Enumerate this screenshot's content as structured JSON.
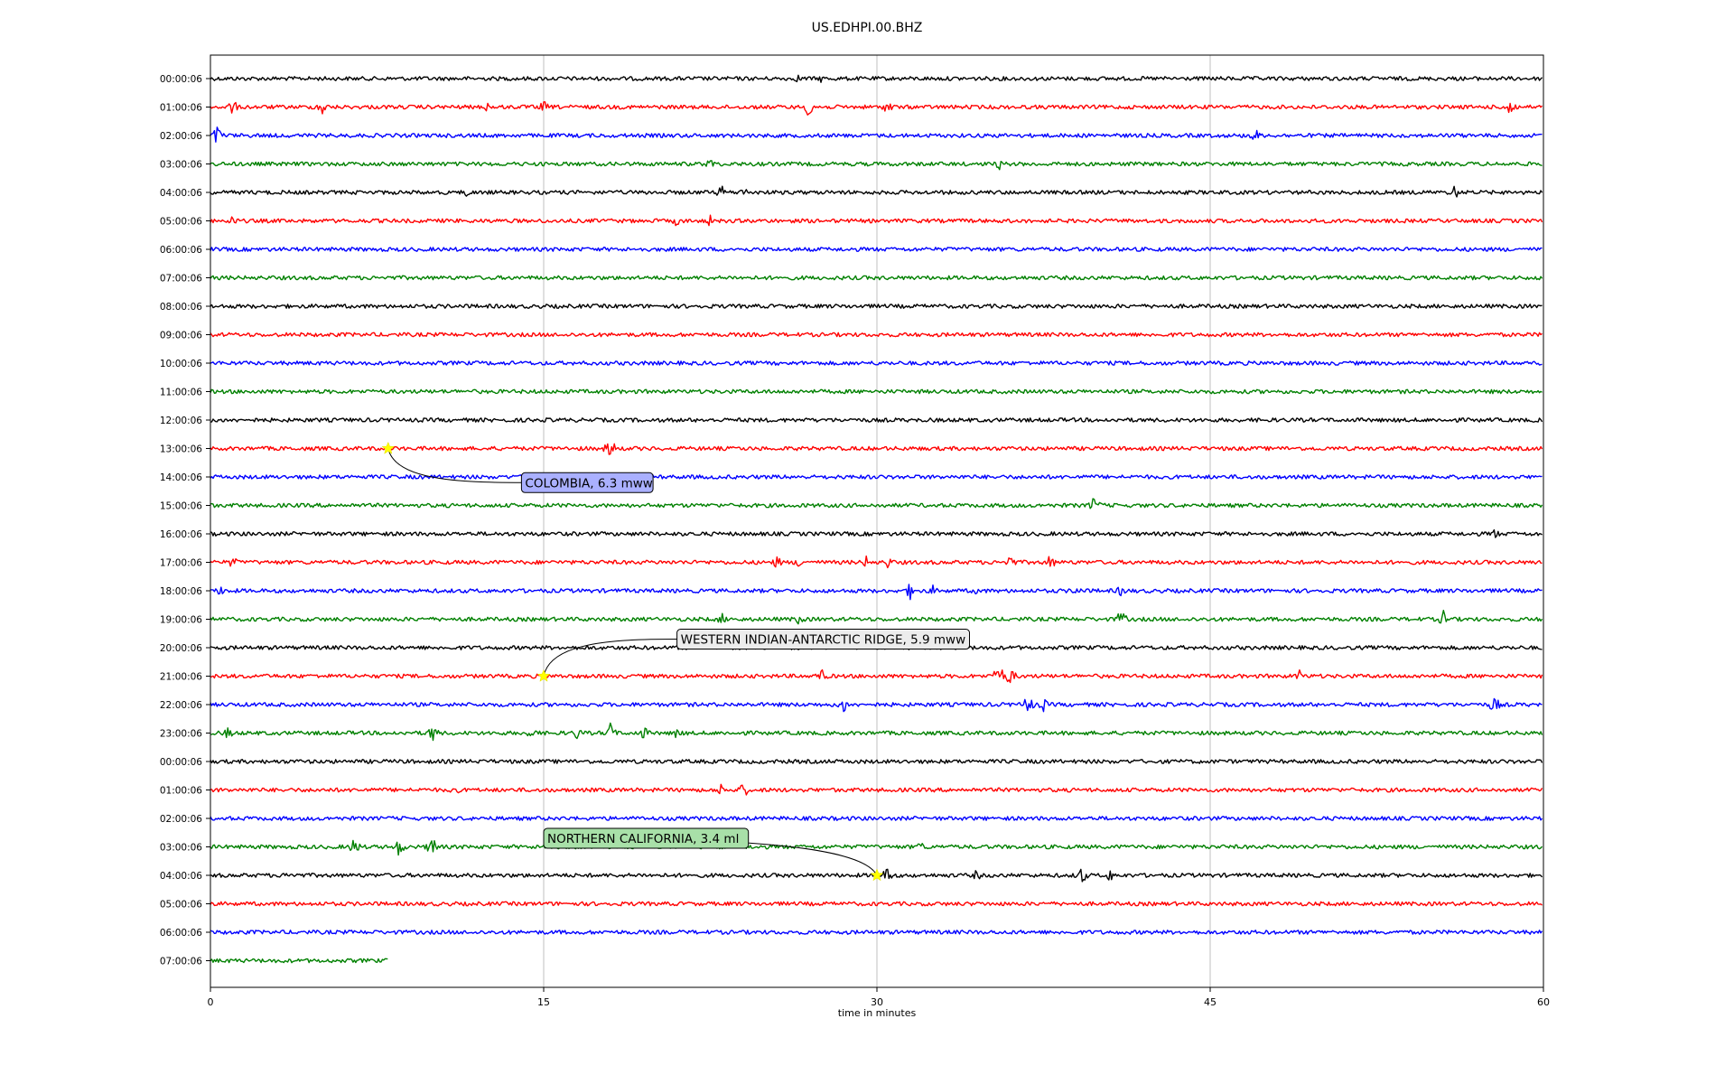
{
  "chart_data": {
    "type": "line",
    "title": "US.EDHPI.00.BHZ",
    "xlabel": "time in minutes",
    "ylabel": "",
    "xlim": [
      0,
      60
    ],
    "x_ticks": [
      0,
      15,
      30,
      45,
      60
    ],
    "grid": "vertical",
    "trace_colors": [
      "#000000",
      "#ff0000",
      "#0000ff",
      "#008000"
    ],
    "rows": [
      "00:00:06",
      "01:00:06",
      "02:00:06",
      "03:00:06",
      "04:00:06",
      "05:00:06",
      "06:00:06",
      "07:00:06",
      "08:00:06",
      "09:00:06",
      "10:00:06",
      "11:00:06",
      "12:00:06",
      "13:00:06",
      "14:00:06",
      "15:00:06",
      "16:00:06",
      "17:00:06",
      "18:00:06",
      "19:00:06",
      "20:00:06",
      "21:00:06",
      "22:00:06",
      "23:00:06",
      "00:00:06",
      "01:00:06",
      "02:00:06",
      "03:00:06",
      "04:00:06",
      "05:00:06",
      "06:00:06",
      "07:00:06"
    ],
    "last_row_end_minute": 8,
    "bursts": [
      {
        "row": 0,
        "minute": 26.5,
        "amp": 6
      },
      {
        "row": 0,
        "minute": 27.5,
        "amp": 5
      },
      {
        "row": 1,
        "minute": 1,
        "amp": 10
      },
      {
        "row": 1,
        "minute": 5,
        "amp": 12
      },
      {
        "row": 1,
        "minute": 12.5,
        "amp": 7
      },
      {
        "row": 1,
        "minute": 15,
        "amp": 8
      },
      {
        "row": 1,
        "minute": 27,
        "amp": 16
      },
      {
        "row": 1,
        "minute": 30.5,
        "amp": 10
      },
      {
        "row": 1,
        "minute": 58.5,
        "amp": 14
      },
      {
        "row": 2,
        "minute": 0.3,
        "amp": 12
      },
      {
        "row": 2,
        "minute": 47,
        "amp": 10
      },
      {
        "row": 3,
        "minute": 22.5,
        "amp": 8
      },
      {
        "row": 3,
        "minute": 35.5,
        "amp": 7
      },
      {
        "row": 4,
        "minute": 11.5,
        "amp": 6
      },
      {
        "row": 4,
        "minute": 23,
        "amp": 9
      },
      {
        "row": 4,
        "minute": 24,
        "amp": 7
      },
      {
        "row": 4,
        "minute": 56,
        "amp": 9
      },
      {
        "row": 5,
        "minute": 1,
        "amp": 8
      },
      {
        "row": 5,
        "minute": 21,
        "amp": 7
      },
      {
        "row": 5,
        "minute": 22.5,
        "amp": 7
      },
      {
        "row": 13,
        "minute": 18,
        "amp": 14
      },
      {
        "row": 15,
        "minute": 39.8,
        "amp": 12
      },
      {
        "row": 16,
        "minute": 57.8,
        "amp": 7
      },
      {
        "row": 17,
        "minute": 1,
        "amp": 8
      },
      {
        "row": 17,
        "minute": 25.5,
        "amp": 8
      },
      {
        "row": 17,
        "minute": 26.5,
        "amp": 7
      },
      {
        "row": 17,
        "minute": 29.5,
        "amp": 8
      },
      {
        "row": 17,
        "minute": 30.5,
        "amp": 8
      },
      {
        "row": 17,
        "minute": 36,
        "amp": 10
      },
      {
        "row": 17,
        "minute": 37.8,
        "amp": 10
      },
      {
        "row": 18,
        "minute": 0.5,
        "amp": 8
      },
      {
        "row": 18,
        "minute": 31.5,
        "amp": 10
      },
      {
        "row": 18,
        "minute": 32.5,
        "amp": 7
      },
      {
        "row": 18,
        "minute": 34.5,
        "amp": 6
      },
      {
        "row": 18,
        "minute": 39,
        "amp": 7
      },
      {
        "row": 18,
        "minute": 41,
        "amp": 8
      },
      {
        "row": 19,
        "minute": 23,
        "amp": 8
      },
      {
        "row": 19,
        "minute": 26.5,
        "amp": 8
      },
      {
        "row": 19,
        "minute": 41,
        "amp": 12
      },
      {
        "row": 19,
        "minute": 55.5,
        "amp": 10
      },
      {
        "row": 21,
        "minute": 27.5,
        "amp": 10
      },
      {
        "row": 21,
        "minute": 35.5,
        "amp": 16
      },
      {
        "row": 21,
        "minute": 36,
        "amp": 12
      },
      {
        "row": 21,
        "minute": 49,
        "amp": 8
      },
      {
        "row": 22,
        "minute": 28.5,
        "amp": 10
      },
      {
        "row": 22,
        "minute": 36.8,
        "amp": 14
      },
      {
        "row": 22,
        "minute": 37.5,
        "amp": 8
      },
      {
        "row": 22,
        "minute": 57.8,
        "amp": 12
      },
      {
        "row": 23,
        "minute": 0.8,
        "amp": 8
      },
      {
        "row": 23,
        "minute": 10,
        "amp": 12
      },
      {
        "row": 23,
        "minute": 14.5,
        "amp": 9
      },
      {
        "row": 23,
        "minute": 16.5,
        "amp": 8
      },
      {
        "row": 23,
        "minute": 18,
        "amp": 12
      },
      {
        "row": 23,
        "minute": 19.5,
        "amp": 9
      },
      {
        "row": 23,
        "minute": 21,
        "amp": 8
      },
      {
        "row": 25,
        "minute": 11,
        "amp": 7
      },
      {
        "row": 25,
        "minute": 23,
        "amp": 8
      },
      {
        "row": 25,
        "minute": 24,
        "amp": 10
      },
      {
        "row": 27,
        "minute": 6.5,
        "amp": 12
      },
      {
        "row": 27,
        "minute": 8.5,
        "amp": 12
      },
      {
        "row": 27,
        "minute": 10,
        "amp": 14
      },
      {
        "row": 27,
        "minute": 15,
        "amp": 6
      },
      {
        "row": 27,
        "minute": 32,
        "amp": 8
      },
      {
        "row": 28,
        "minute": 3.5,
        "amp": 8
      },
      {
        "row": 28,
        "minute": 30.5,
        "amp": 12
      },
      {
        "row": 28,
        "minute": 34.5,
        "amp": 7
      },
      {
        "row": 28,
        "minute": 39.2,
        "amp": 12
      },
      {
        "row": 28,
        "minute": 40.5,
        "amp": 8
      }
    ],
    "events": [
      {
        "label": "COLOMBIA, 6.3 mww",
        "row": 13,
        "minute": 8,
        "box_row": 14.2,
        "box_minute": 14,
        "box_color": "#aab0ff"
      },
      {
        "label": "WESTERN INDIAN-ANTARCTIC RIDGE, 5.9 mww",
        "row": 21,
        "minute": 15,
        "box_row": 19.7,
        "box_minute": 21,
        "box_color": "#ececec"
      },
      {
        "label": "NORTHERN CALIFORNIA, 3.4 ml",
        "row": 28,
        "minute": 30,
        "box_row": 26.7,
        "box_minute": 15,
        "box_color": "#a8e0a8"
      }
    ]
  }
}
